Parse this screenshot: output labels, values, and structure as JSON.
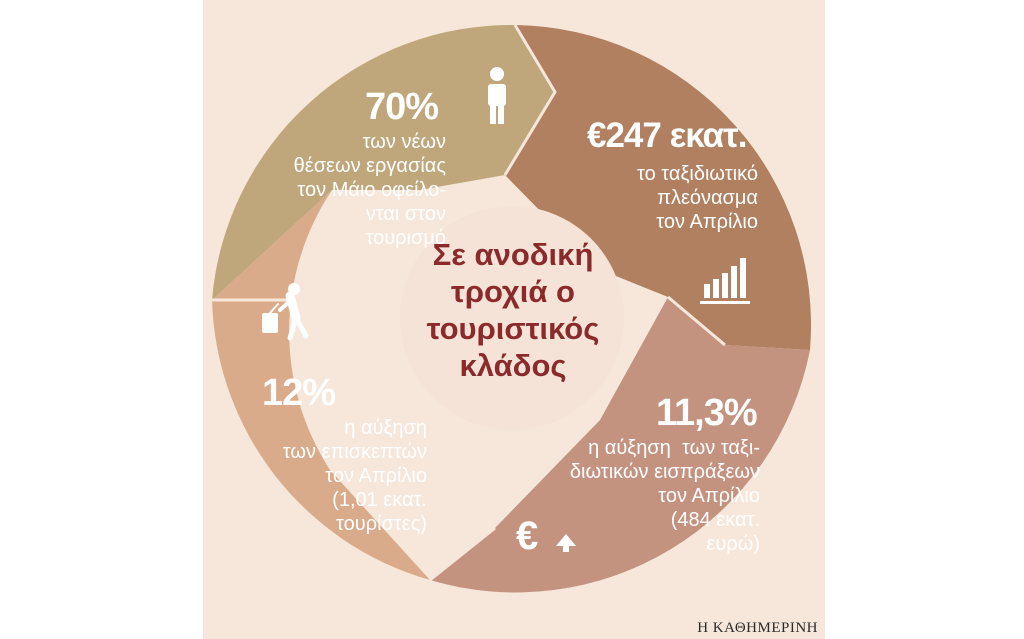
{
  "center_title": "Σε ανοδική τροχιά ο τουριστικός κλάδος",
  "source": "Η ΚΑΘΗΜΕΡΙΝΗ",
  "colors": {
    "background": "#f6e7da",
    "segment_jobs": "#bfa77b",
    "segment_surplus": "#b08060",
    "segment_receipts": "#c49380",
    "segment_visitors": "#d9ab8a",
    "center_circle": "#f4e3d6",
    "title_text": "#8b2a2a"
  },
  "segments": [
    {
      "id": "jobs",
      "value": "70%",
      "description": "των νέων\nθέσεων εργασίας\nτον Μάιο οφείλο-\nνται στον\nτουρισμό",
      "icon": "person-icon"
    },
    {
      "id": "surplus",
      "value": "€247 εκατ.",
      "description": "το ταξιδιωτικό\nπλεόνασμα\nτον Απρίλιο",
      "icon": "bar-chart-icon"
    },
    {
      "id": "receipts",
      "value": "11,3%",
      "description": "η αύξηση  των ταξι-\nδιωτικών εισπράξεων\nτον Απρίλιο\n(484 εκατ.\nευρώ)",
      "icon": "euro-up-icon"
    },
    {
      "id": "visitors",
      "value": "12%",
      "description": "η αύξηση\nτων επισκεπτών\nτον Απρίλιο\n(1,01 εκατ.\nτουρίστες)",
      "icon": "traveler-luggage-icon"
    }
  ]
}
